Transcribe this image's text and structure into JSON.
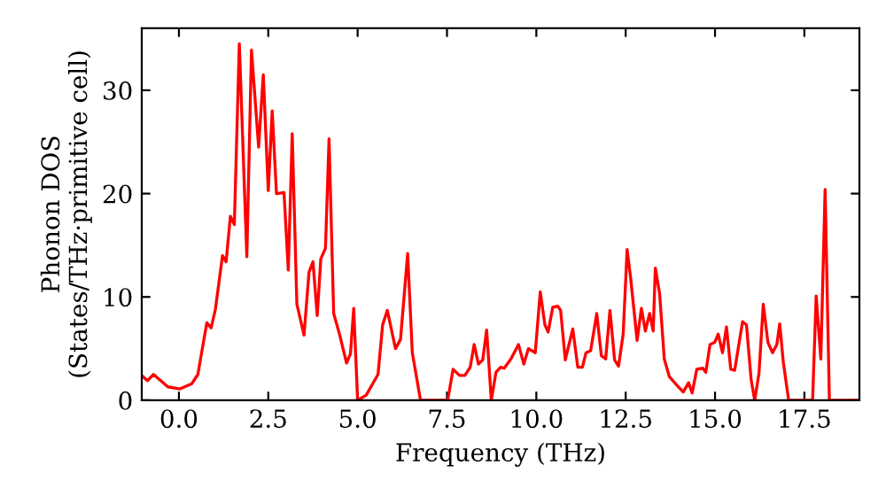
{
  "chart_data": {
    "type": "line",
    "xlabel": "Frequency (THz)",
    "ylabel": "Phonon DOS\n(States/THz·primitive cell)",
    "xlim": [
      -1.04,
      19.04
    ],
    "ylim": [
      0,
      36
    ],
    "xticks": [
      {
        "value": 0,
        "label": "0.0"
      },
      {
        "value": 2.5,
        "label": "2.5"
      },
      {
        "value": 5,
        "label": "5.0"
      },
      {
        "value": 7.5,
        "label": "7.5"
      },
      {
        "value": 10,
        "label": "10.0"
      },
      {
        "value": 12.5,
        "label": "12.5"
      },
      {
        "value": 15,
        "label": "15.0"
      },
      {
        "value": 17.5,
        "label": "17.5"
      }
    ],
    "yticks": [
      0,
      10,
      20,
      30
    ],
    "marker": "none",
    "line_style": "solid",
    "series": [
      {
        "color": "#ff0000",
        "x": [
          -1.04,
          -0.88,
          -0.71,
          -0.31,
          0.03,
          0.36,
          0.53,
          0.78,
          0.9,
          1.02,
          1.22,
          1.32,
          1.44,
          1.55,
          1.69,
          1.9,
          2.03,
          2.23,
          2.36,
          2.5,
          2.61,
          2.73,
          2.94,
          3.06,
          3.17,
          3.3,
          3.5,
          3.64,
          3.75,
          3.87,
          3.97,
          4.1,
          4.2,
          4.33,
          4.5,
          4.69,
          4.8,
          4.89,
          5.0,
          5.24,
          5.57,
          5.7,
          5.83,
          6.06,
          6.2,
          6.4,
          6.53,
          6.76,
          7.52,
          7.67,
          7.85,
          8.0,
          8.15,
          8.26,
          8.38,
          8.5,
          8.61,
          8.74,
          8.87,
          9.0,
          9.1,
          9.29,
          9.5,
          9.65,
          9.78,
          9.97,
          10.11,
          10.24,
          10.33,
          10.46,
          10.6,
          10.68,
          10.81,
          11.02,
          11.16,
          11.29,
          11.39,
          11.52,
          11.69,
          11.82,
          11.94,
          12.06,
          12.19,
          12.3,
          12.43,
          12.54,
          12.64,
          12.82,
          12.94,
          13.05,
          13.17,
          13.27,
          13.33,
          13.45,
          13.58,
          13.72,
          13.92,
          14.11,
          14.26,
          14.36,
          14.49,
          14.66,
          14.74,
          14.86,
          14.99,
          15.09,
          15.21,
          15.32,
          15.44,
          15.55,
          15.77,
          15.88,
          16.01,
          16.11,
          16.23,
          16.35,
          16.48,
          16.61,
          16.73,
          16.81,
          16.91,
          17.06,
          17.73,
          17.83,
          17.96,
          18.08,
          18.2,
          19.04
        ],
        "values": [
          2.4,
          1.9,
          2.5,
          1.3,
          1.1,
          1.6,
          2.5,
          7.5,
          7.0,
          8.8,
          14.0,
          13.4,
          17.8,
          17.0,
          34.5,
          13.9,
          33.9,
          24.5,
          31.5,
          20.3,
          28.0,
          20.0,
          20.1,
          12.6,
          25.8,
          9.3,
          6.3,
          12.4,
          13.4,
          8.2,
          13.7,
          14.7,
          25.3,
          8.4,
          6.3,
          3.6,
          4.5,
          8.9,
          0,
          0.5,
          2.5,
          7.3,
          8.7,
          5.0,
          5.9,
          14.2,
          4.6,
          0,
          0,
          3.0,
          2.4,
          2.4,
          3.2,
          5.4,
          3.5,
          3.9,
          6.8,
          0,
          2.7,
          3.2,
          3.1,
          4.0,
          5.4,
          3.5,
          5.0,
          4.6,
          10.5,
          7.3,
          6.6,
          9.0,
          9.1,
          8.7,
          3.9,
          6.9,
          3.2,
          3.2,
          4.6,
          4.8,
          8.4,
          4.3,
          4.0,
          8.7,
          3.9,
          3.3,
          6.4,
          14.6,
          11.8,
          5.8,
          8.9,
          6.7,
          8.4,
          6.7,
          12.8,
          10.3,
          4.0,
          2.3,
          1.5,
          0.8,
          1.7,
          0.7,
          3.0,
          3.1,
          2.7,
          5.4,
          5.6,
          6.4,
          4.6,
          7.1,
          3.0,
          2.9,
          7.6,
          7.3,
          2.0,
          0,
          2.6,
          9.3,
          5.6,
          4.6,
          5.4,
          7.4,
          3.7,
          0,
          0,
          10.1,
          4.0,
          20.4,
          0,
          0
        ]
      }
    ]
  }
}
